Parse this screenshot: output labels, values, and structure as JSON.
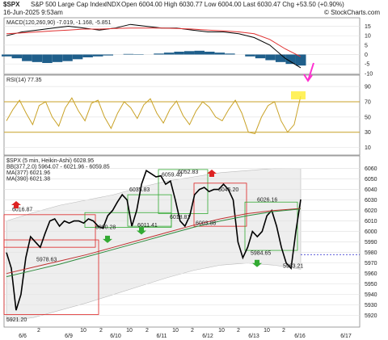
{
  "header": {
    "symbol": "$SPX",
    "name": "S&P 500 Large Cap Index",
    "exchange": "INDX",
    "date": "16-Jun-2025 9:53am",
    "quote": "Open 6004.00 High 6030.77 Low 6004.00 Last 6030.47 Chg +53.50 (+0.90%)",
    "copyright": "© StockCharts.com"
  },
  "chart_data": [
    {
      "type": "macd",
      "legend": "MACD(120,260,90) -7.019, -1.168, -5.851",
      "ylim": [
        -10.5,
        19.5
      ],
      "yticks": [
        -10,
        -5,
        0,
        5,
        10,
        15
      ],
      "grid": true,
      "series": [
        {
          "color": "#000000",
          "values": [
            10,
            12,
            13,
            14,
            15,
            14,
            13,
            14,
            16,
            15,
            14,
            14,
            13,
            12,
            12,
            11,
            9,
            5,
            -2,
            -7.019
          ]
        },
        {
          "color": "#e03030",
          "values": [
            11,
            11.5,
            12,
            12.5,
            13,
            13.5,
            13.5,
            13.8,
            14,
            14,
            14,
            13.8,
            13.5,
            13,
            12.5,
            12,
            11,
            8,
            3,
            -1.168
          ]
        }
      ],
      "histogram": {
        "color": "#1f5f8b",
        "values": [
          -1,
          -2,
          -3.5,
          -4,
          -4.5,
          -4,
          -3.5,
          -2.5,
          -1.5,
          -1,
          -0.5,
          0,
          0.3,
          0.2,
          0,
          0.5,
          1,
          1.5,
          1.8,
          2,
          1.5,
          1,
          0.5,
          0,
          -1,
          -2,
          -3,
          -4,
          -5,
          -5.851
        ]
      }
    },
    {
      "type": "rsi",
      "legend": "RSI(14) 77.35",
      "ylim": [
        0,
        105
      ],
      "yticks": [
        10,
        30,
        50,
        70,
        90
      ],
      "grid": true,
      "bands": [
        30,
        70
      ],
      "color": "#c9a227",
      "values": [
        45,
        60,
        72,
        55,
        40,
        65,
        70,
        50,
        38,
        62,
        75,
        58,
        45,
        68,
        72,
        50,
        35,
        55,
        70,
        62,
        48,
        66,
        74,
        55,
        42,
        60,
        71,
        52,
        40,
        58,
        70,
        63,
        50,
        45,
        60,
        72,
        55,
        30,
        28,
        50,
        65,
        70,
        45,
        30,
        40,
        77.35
      ]
    },
    {
      "type": "price",
      "legend": [
        "$SPX (5 min, Heikin-Ashi) 6028.95",
        "BB(377,2.0) 5964.07 - 6021.96 - 6059.85",
        "MA(377) 6021.96",
        "MA(390) 6021.38"
      ],
      "ylim": [
        5909,
        6072
      ],
      "yticks": [
        5920,
        5930,
        5940,
        5950,
        5960,
        5970,
        5980,
        5990,
        6000,
        6010,
        6020,
        6030,
        6040,
        6050,
        6060
      ],
      "grid": true,
      "x_tick_labels": [
        "6/6",
        "2",
        "6/9",
        "10",
        "2",
        "6/10",
        "10",
        "2",
        "6/11",
        "10",
        "2",
        "6/12",
        "10",
        "2",
        "6/13",
        "10",
        "2",
        "6/16",
        "6/17"
      ],
      "bb": {
        "color": "#dddddd",
        "upper": [
          6010,
          6018,
          6025,
          6030,
          6035,
          6042,
          6048,
          6052,
          6056,
          6058,
          6060,
          6059.85
        ],
        "lower": [
          5915,
          5918,
          5925,
          5932,
          5940,
          5948,
          5956,
          5963,
          5968,
          5970,
          5968,
          5964.07
        ]
      },
      "series": [
        {
          "color": "#000000",
          "values": [
            5980,
            5965,
            5925,
            5940,
            5975,
            5995,
            5990,
            5985,
            5998,
            6010,
            6012,
            6005,
            6010,
            6008,
            6010,
            6010,
            6008,
            6012,
            6010,
            6005,
            6003,
            6015,
            6020,
            6028,
            6035,
            6030,
            6005,
            6020,
            6045,
            6058,
            6055,
            6052,
            6053,
            6045,
            6048,
            6030,
            6010,
            6005,
            6015,
            6035,
            6040,
            6042,
            6038,
            6040,
            6040,
            6045,
            6040,
            6030,
            5990,
            5975,
            5985,
            6000,
            5995,
            6000,
            6015,
            6020,
            6005,
            5985,
            5970,
            5965,
            6000,
            6030.47
          ]
        },
        {
          "color": "#c03030",
          "values": [
            5960,
            5966,
            5972,
            5978,
            5985,
            5992,
            5999,
            6006,
            6012,
            6017,
            6020,
            6021.96
          ]
        },
        {
          "color": "#2e8b3e",
          "values": [
            5957,
            5963,
            5969,
            5976,
            5983,
            5990,
            5997,
            6004,
            6010,
            6015,
            6019,
            6021.38
          ]
        }
      ],
      "last_line": 5978,
      "annotations": [
        {
          "label": "6016.87",
          "value": 6016.87
        },
        {
          "label": "5978.63",
          "value": 5978.63
        },
        {
          "label": "6000.28",
          "value": 6000.28
        },
        {
          "label": "6011.41",
          "value": 6011.41
        },
        {
          "label": "6035.83",
          "value": 6035.83
        },
        {
          "label": "6059.40",
          "value": 6059.4
        },
        {
          "label": "6052.83",
          "value": 6052.83
        },
        {
          "label": "6018.81",
          "value": 6018.81
        },
        {
          "label": "6003.88",
          "value": 6003.88
        },
        {
          "label": "6045.20",
          "value": 6045.2
        },
        {
          "label": "6026.16",
          "value": 6026.16
        },
        {
          "label": "5984.65",
          "value": 5984.65
        },
        {
          "label": "5963.21",
          "value": 5963.21
        },
        {
          "label": "5921.20",
          "value": 5921.2
        }
      ]
    }
  ]
}
